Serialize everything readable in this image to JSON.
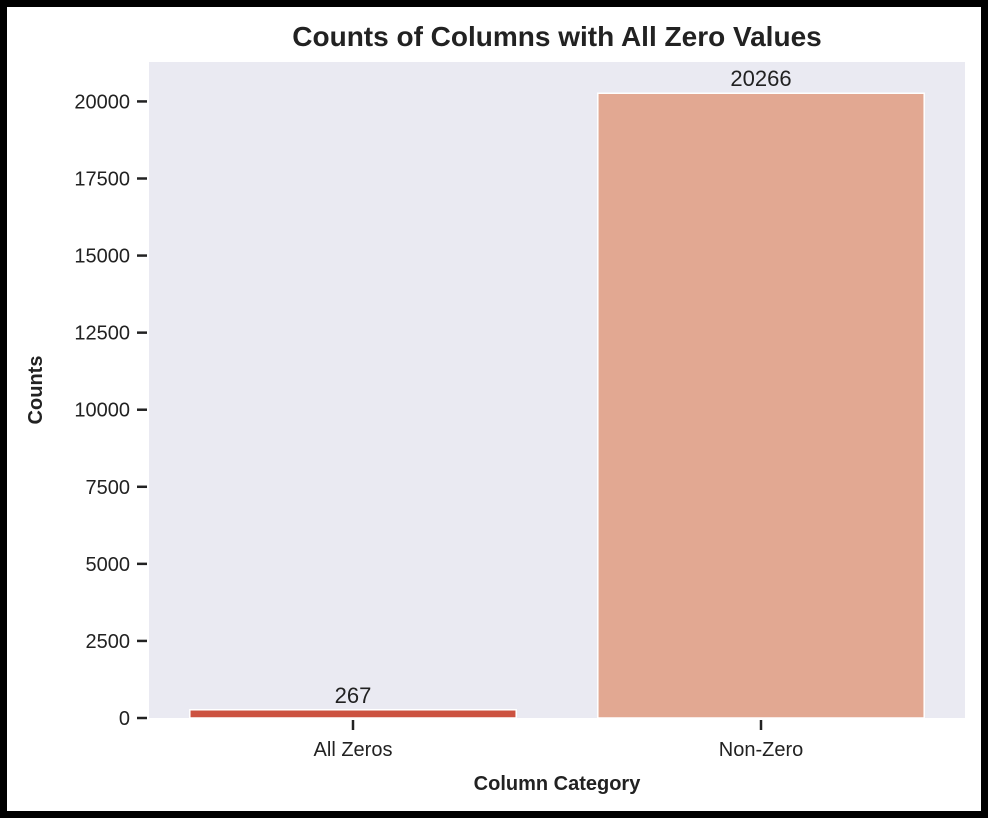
{
  "chart_data": {
    "type": "bar",
    "title": "Counts of Columns with All Zero Values",
    "xlabel": "Column Category",
    "ylabel": "Counts",
    "categories": [
      "All Zeros",
      "Non-Zero"
    ],
    "values": [
      267,
      20266
    ],
    "data_labels": [
      "267",
      "20266"
    ],
    "yticks": [
      0,
      2500,
      5000,
      7500,
      10000,
      12500,
      15000,
      17500,
      20000
    ],
    "ytick_labels": [
      "0",
      "2500",
      "5000",
      "7500",
      "10000",
      "12500",
      "15000",
      "17500",
      "20000"
    ],
    "ylim": [
      0,
      21279
    ],
    "grid": false,
    "colors": {
      "bars": [
        "#cc5240",
        "#e2a892"
      ],
      "plot_background": "#eaeaf2",
      "text": "#222222"
    }
  }
}
